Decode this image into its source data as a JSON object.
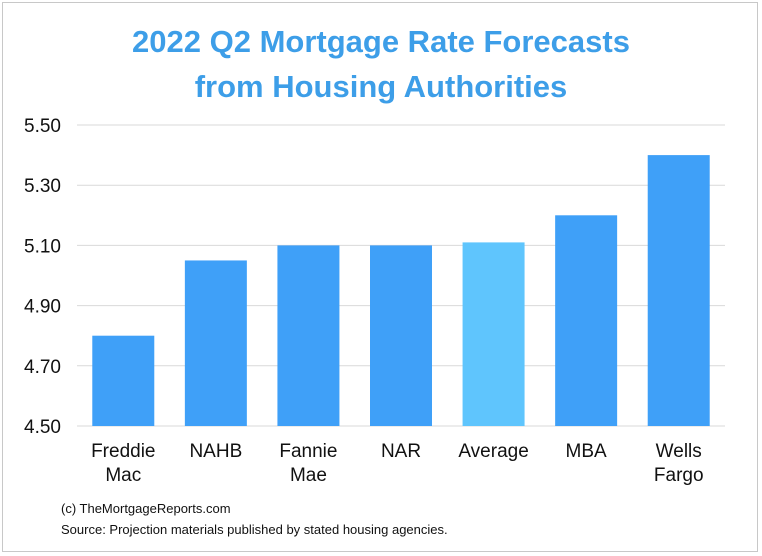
{
  "chart_data": {
    "type": "bar",
    "title": [
      "2022 Q2 Mortgage Rate Forecasts",
      "from Housing Authorities"
    ],
    "categories": [
      [
        "Freddie",
        "Mac"
      ],
      [
        "NAHB"
      ],
      [
        "Fannie",
        "Mae"
      ],
      [
        "NAR"
      ],
      [
        "Average"
      ],
      [
        "MBA"
      ],
      [
        "Wells",
        "Fargo"
      ]
    ],
    "values": [
      4.8,
      5.05,
      5.1,
      5.1,
      5.11,
      5.2,
      5.4
    ],
    "bar_colors": [
      "#3fa0f8",
      "#3fa0f8",
      "#3fa0f8",
      "#3fa0f8",
      "#5fc5fd",
      "#3fa0f8",
      "#3fa0f8"
    ],
    "ylim": [
      4.5,
      5.5
    ],
    "yticks": [
      "4.50",
      "4.70",
      "4.90",
      "5.10",
      "5.30",
      "5.50"
    ],
    "grid": true,
    "xlabel": "",
    "ylabel": ""
  },
  "footer": {
    "copyright": "(c) TheMortgageReports.com",
    "source": "Source: Projection materials published by stated housing agencies."
  },
  "colors": {
    "title": "#3d9ee8",
    "bar": "#3fa0f8",
    "highlight_bar": "#5fc5fd",
    "grid": "#d9d9d9"
  }
}
